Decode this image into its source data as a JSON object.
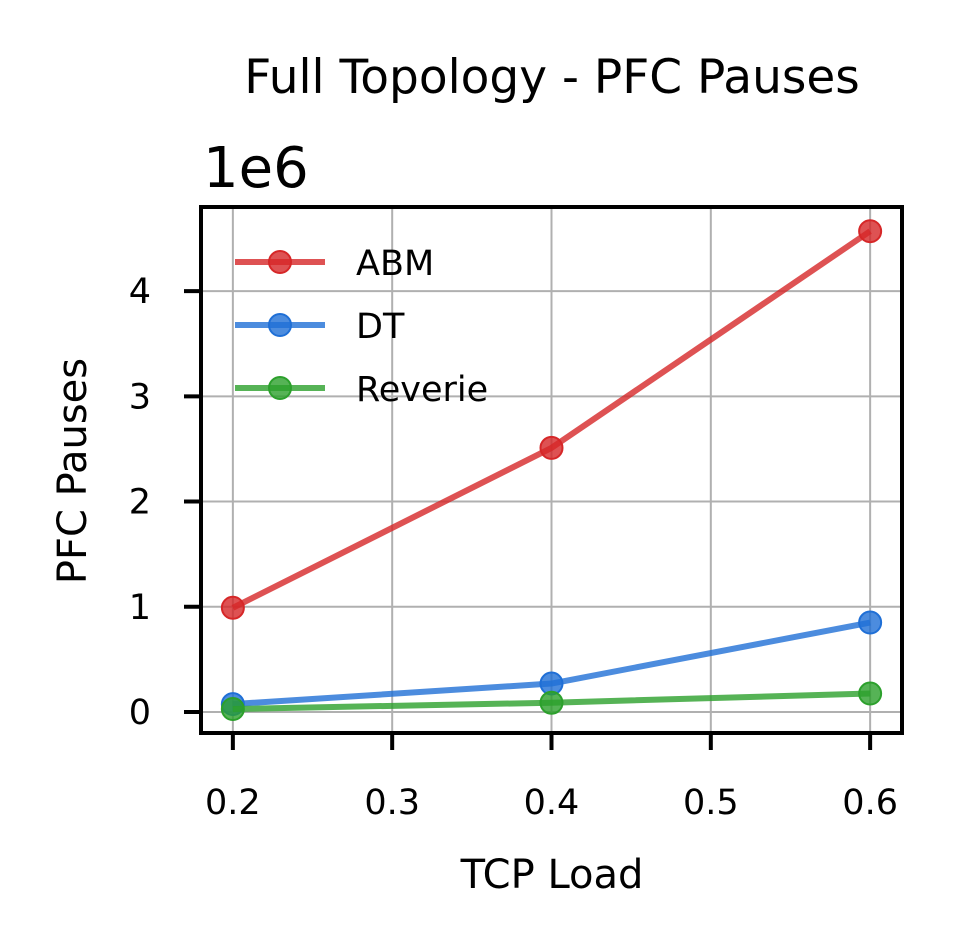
{
  "chart_data": {
    "type": "line",
    "title": "Full Topology - PFC Pauses",
    "xlabel": "TCP Load",
    "ylabel": "PFC Pauses",
    "y_multiplier_label": "1e6",
    "xlim": [
      0.18,
      0.62
    ],
    "ylim": [
      -200000,
      4800000
    ],
    "x_ticks": [
      0.2,
      0.3,
      0.4,
      0.5,
      0.6
    ],
    "x_tick_labels": [
      "0.2",
      "0.3",
      "0.4",
      "0.5",
      "0.6"
    ],
    "y_ticks": [
      0,
      1000000,
      2000000,
      3000000,
      4000000
    ],
    "y_tick_labels": [
      "0",
      "1",
      "2",
      "3",
      "4"
    ],
    "grid": true,
    "legend_position": "upper-left",
    "x": [
      0.2,
      0.4,
      0.6
    ],
    "series": [
      {
        "name": "ABM",
        "color": "#d62728",
        "values": [
          990000,
          2510000,
          4570000
        ]
      },
      {
        "name": "DT",
        "color": "#1f6fd6",
        "values": [
          75000,
          270000,
          850000
        ]
      },
      {
        "name": "Reverie",
        "color": "#2ca02c",
        "values": [
          28000,
          88000,
          175000
        ]
      }
    ]
  }
}
